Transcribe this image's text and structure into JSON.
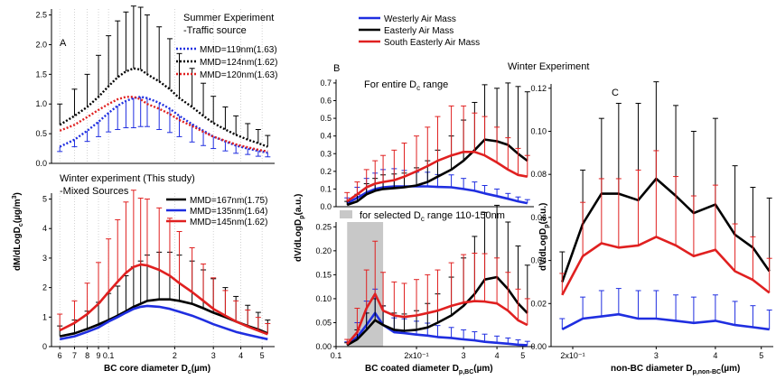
{
  "figure": {
    "panel_a_label": "A",
    "panel_b_label": "B",
    "panel_c_label": "C",
    "summer_title": "Summer Experiment",
    "summer_subtitle": "-Traffic source",
    "winter_title": "Winter experiment (This study)",
    "winter_subtitle": "-Mixed Sources",
    "winter_experiment": "Winter Experiment",
    "entire_range": "For entire D",
    "entire_range_sub": "c",
    "entire_range_tail": " range",
    "selected_range": "for selected D",
    "selected_range_sub": "c",
    "selected_range_tail": " range 110-150nm",
    "a_ylabel_main": "dM/dLogD",
    "a_ylabel_sub": "c",
    "a_ylabel_tail": "(µg/m",
    "a_ylabel_sup": "3",
    "a_ylabel_end": ")",
    "a_xlabel_main": "BC core diameter D",
    "a_xlabel_sub": "c",
    "a_xlabel_tail": "(µm)",
    "b_ylabel_main": "dV/dLogD",
    "b_ylabel_sub": "p",
    "b_ylabel_tail": "(a.u.)",
    "b_xlabel_main": "BC coated diameter D",
    "b_xlabel_sub": "p,BC",
    "b_xlabel_tail": "(µm)",
    "c_ylabel_main": "dV/dLogD",
    "c_ylabel_sub": "p",
    "c_ylabel_tail": "(a.u.)",
    "c_xlabel_main": "non-BC diameter D",
    "c_xlabel_sub": "p,non-BC",
    "c_xlabel_tail": "(µm)"
  },
  "colors": {
    "westerly": "#1f2ee0",
    "easterly": "#000000",
    "southeasterly": "#e02020",
    "shade": "#c8c8c8"
  },
  "chart_data": [
    {
      "panel": "A-top",
      "type": "line",
      "x_scale": "log",
      "xlim": [
        0.055,
        0.57
      ],
      "ylim": [
        0,
        2.6
      ],
      "yticks": [
        0.0,
        0.5,
        1.0,
        1.5,
        2.0,
        2.5
      ],
      "ytick_labels": [
        "0.0",
        "0.5",
        "1.0",
        "1.5",
        "2.0",
        "2.5"
      ],
      "grid": "vertical dotted",
      "legend": "top-right",
      "x": [
        0.06,
        0.07,
        0.08,
        0.09,
        0.1,
        0.11,
        0.12,
        0.13,
        0.14,
        0.15,
        0.17,
        0.19,
        0.21,
        0.24,
        0.27,
        0.3,
        0.34,
        0.38,
        0.43,
        0.48,
        0.53
      ],
      "series": [
        {
          "name": "MMD=119nm(1.63)",
          "color": "#1f2ee0",
          "style": "dotted",
          "values": [
            0.28,
            0.4,
            0.55,
            0.7,
            0.85,
            0.97,
            1.05,
            1.1,
            1.12,
            1.1,
            1.02,
            0.92,
            0.8,
            0.66,
            0.55,
            0.45,
            0.37,
            0.3,
            0.25,
            0.21,
            0.18
          ],
          "errors": [
            0,
            0,
            0,
            0,
            0,
            0,
            0,
            0,
            0,
            0,
            0,
            0,
            0,
            0,
            0,
            0,
            0,
            0,
            0,
            0,
            0
          ],
          "lower_errors": [
            0.08,
            0.12,
            0.18,
            0.25,
            0.32,
            0.4,
            0.45,
            0.5,
            0.5,
            0.48,
            0.45,
            0.4,
            0.35,
            0.3,
            0.25,
            0.2,
            0.16,
            0.13,
            0.1,
            0.09,
            0.07
          ]
        },
        {
          "name": "MMD=124nm(1.62)",
          "color": "#000000",
          "style": "dotted",
          "values": [
            0.65,
            0.8,
            0.95,
            1.12,
            1.3,
            1.45,
            1.55,
            1.6,
            1.58,
            1.5,
            1.38,
            1.25,
            1.1,
            0.95,
            0.8,
            0.68,
            0.57,
            0.48,
            0.4,
            0.34,
            0.28
          ],
          "errors": [
            0.35,
            0.45,
            0.55,
            0.7,
            0.85,
            0.95,
            1.0,
            1.05,
            1.05,
            1.0,
            0.92,
            0.85,
            0.75,
            0.65,
            0.55,
            0.45,
            0.38,
            0.32,
            0.27,
            0.23,
            0.19
          ]
        },
        {
          "name": "MMD=120nm(1.63)",
          "color": "#e02020",
          "style": "dotted",
          "values": [
            0.55,
            0.65,
            0.78,
            0.9,
            1.0,
            1.08,
            1.12,
            1.12,
            1.08,
            1.0,
            0.92,
            0.83,
            0.73,
            0.63,
            0.53,
            0.45,
            0.38,
            0.32,
            0.27,
            0.23,
            0.2
          ],
          "errors": [
            0,
            0,
            0,
            0,
            0,
            0,
            0,
            0,
            0,
            0,
            0,
            0,
            0,
            0,
            0,
            0,
            0,
            0,
            0,
            0,
            0
          ]
        }
      ]
    },
    {
      "panel": "A-bottom",
      "type": "line",
      "x_scale": "log",
      "xlim": [
        0.055,
        0.57
      ],
      "ylim": [
        0,
        5.2
      ],
      "xticks": [
        0.06,
        0.07,
        0.08,
        0.09,
        0.1,
        0.2,
        0.3,
        0.4,
        0.5
      ],
      "xtick_labels": [
        "6",
        "7",
        "8",
        "9",
        "0.1",
        "2",
        "3",
        "4",
        "5"
      ],
      "yticks": [
        0,
        1,
        2,
        3,
        4,
        5
      ],
      "ytick_labels": [
        "0",
        "1",
        "2",
        "3",
        "4",
        "5"
      ],
      "legend": "top-right",
      "x": [
        0.06,
        0.07,
        0.08,
        0.09,
        0.1,
        0.11,
        0.12,
        0.13,
        0.14,
        0.15,
        0.17,
        0.19,
        0.21,
        0.24,
        0.27,
        0.3,
        0.34,
        0.38,
        0.43,
        0.48,
        0.53
      ],
      "series": [
        {
          "name": "MMD=167nm(1.75)",
          "color": "#000000",
          "values": [
            0.35,
            0.45,
            0.6,
            0.75,
            0.9,
            1.05,
            1.2,
            1.35,
            1.45,
            1.55,
            1.6,
            1.6,
            1.55,
            1.45,
            1.3,
            1.15,
            1.0,
            0.85,
            0.7,
            0.58,
            0.45
          ],
          "errors": [
            0.35,
            0.45,
            0.6,
            0.75,
            0.9,
            1.0,
            1.2,
            1.35,
            1.45,
            1.55,
            1.6,
            1.6,
            1.55,
            1.45,
            1.3,
            1.15,
            1.0,
            0.85,
            0.7,
            0.58,
            0.45
          ]
        },
        {
          "name": "MMD=135nm(1.64)",
          "color": "#1f2ee0",
          "values": [
            0.25,
            0.35,
            0.5,
            0.65,
            0.85,
            1.0,
            1.15,
            1.28,
            1.35,
            1.38,
            1.35,
            1.28,
            1.18,
            1.05,
            0.9,
            0.76,
            0.62,
            0.5,
            0.4,
            0.32,
            0.25
          ],
          "errors": [
            0,
            0,
            0,
            0,
            0,
            0,
            0,
            0,
            0,
            0,
            0,
            0,
            0,
            0,
            0,
            0,
            0,
            0,
            0,
            0,
            0
          ]
        },
        {
          "name": "MMD=145nm(1.62)",
          "color": "#e02020",
          "values": [
            0.55,
            0.8,
            1.1,
            1.45,
            1.85,
            2.2,
            2.5,
            2.7,
            2.78,
            2.75,
            2.6,
            2.4,
            2.15,
            1.85,
            1.55,
            1.28,
            1.05,
            0.85,
            0.68,
            0.54,
            0.42
          ],
          "errors": [
            0.55,
            0.75,
            1.05,
            1.4,
            1.8,
            2.1,
            2.4,
            2.6,
            2.25,
            2.25,
            2.1,
            1.95,
            1.75,
            1.5,
            1.25,
            1.05,
            0.85,
            0.7,
            0.56,
            0.45,
            0.36
          ]
        }
      ]
    },
    {
      "panel": "B-top",
      "type": "line",
      "x_scale": "log",
      "xlim": [
        0.1,
        0.55
      ],
      "ylim": [
        0,
        0.72
      ],
      "yticks": [
        0.0,
        0.1,
        0.2,
        0.3,
        0.4,
        0.5,
        0.6,
        0.7
      ],
      "ytick_labels": [
        "0.0",
        "0.1",
        "0.2",
        "0.3",
        "0.4",
        "0.5",
        "0.6",
        "0.7"
      ],
      "legend": "top",
      "x": [
        0.11,
        0.12,
        0.13,
        0.14,
        0.15,
        0.165,
        0.18,
        0.2,
        0.22,
        0.24,
        0.27,
        0.3,
        0.33,
        0.36,
        0.4,
        0.44,
        0.48,
        0.52
      ],
      "series": [
        {
          "name": "Westerly Air Mass",
          "color": "#1f2ee0",
          "values": [
            0.02,
            0.05,
            0.08,
            0.1,
            0.11,
            0.115,
            0.115,
            0.115,
            0.115,
            0.112,
            0.11,
            0.1,
            0.09,
            0.075,
            0.06,
            0.045,
            0.03,
            0.02
          ],
          "errors": [
            0.03,
            0.06,
            0.08,
            0.09,
            0.1,
            0.1,
            0.09,
            0.08,
            0.08,
            0.07,
            0.07,
            0.06,
            0.05,
            0.045,
            0.04,
            0.03,
            0.025,
            0.02
          ]
        },
        {
          "name": "Easterly Air Mass",
          "color": "#000000",
          "values": [
            0.01,
            0.03,
            0.07,
            0.09,
            0.1,
            0.105,
            0.11,
            0.12,
            0.14,
            0.17,
            0.21,
            0.26,
            0.32,
            0.38,
            0.37,
            0.35,
            0.3,
            0.26
          ],
          "errors": [
            0.02,
            0.04,
            0.06,
            0.07,
            0.08,
            0.08,
            0.08,
            0.1,
            0.12,
            0.15,
            0.19,
            0.23,
            0.27,
            0.31,
            0.3,
            0.35,
            0.38,
            0.39
          ]
        },
        {
          "name": "South Easterly Air Mass",
          "color": "#e02020",
          "values": [
            0.03,
            0.07,
            0.11,
            0.13,
            0.14,
            0.15,
            0.17,
            0.2,
            0.23,
            0.26,
            0.29,
            0.31,
            0.31,
            0.29,
            0.25,
            0.21,
            0.18,
            0.17
          ],
          "errors": [
            0.05,
            0.07,
            0.1,
            0.13,
            0.15,
            0.17,
            0.19,
            0.2,
            0.22,
            0.25,
            0.28,
            0.26,
            0.22,
            0.22,
            0.2,
            0.18,
            0.15,
            0.12
          ]
        }
      ]
    },
    {
      "panel": "B-bottom",
      "type": "line",
      "x_scale": "log",
      "xlim": [
        0.1,
        0.55
      ],
      "ylim": [
        0,
        0.26
      ],
      "xticks": [
        0.1,
        0.2,
        0.3,
        0.4,
        0.5
      ],
      "xtick_labels": [
        "0.1",
        "2x10⁻¹",
        "3",
        "4",
        "5"
      ],
      "yticks": [
        0.0,
        0.05,
        0.1,
        0.15,
        0.2,
        0.25
      ],
      "ytick_labels": [
        "0.00",
        "0.05",
        "0.10",
        "0.15",
        "0.20",
        "0.25"
      ],
      "shaded_range": [
        0.11,
        0.15
      ],
      "x": [
        0.11,
        0.12,
        0.13,
        0.14,
        0.15,
        0.165,
        0.18,
        0.2,
        0.22,
        0.24,
        0.27,
        0.3,
        0.33,
        0.36,
        0.4,
        0.44,
        0.48,
        0.52
      ],
      "series": [
        {
          "name": "Westerly Air Mass",
          "color": "#1f2ee0",
          "values": [
            0.004,
            0.02,
            0.045,
            0.07,
            0.045,
            0.03,
            0.028,
            0.025,
            0.023,
            0.02,
            0.018,
            0.015,
            0.013,
            0.01,
            0.008,
            0.006,
            0.004,
            0.003
          ],
          "errors": [
            0.006,
            0.03,
            0.05,
            0.05,
            0.04,
            0.03,
            0.03,
            0.028,
            0.026,
            0.024,
            0.022,
            0.02,
            0.018,
            0.016,
            0.014,
            0.012,
            0.01,
            0.008
          ]
        },
        {
          "name": "Easterly Air Mass",
          "color": "#000000",
          "values": [
            0.003,
            0.015,
            0.035,
            0.055,
            0.045,
            0.035,
            0.033,
            0.035,
            0.04,
            0.05,
            0.065,
            0.085,
            0.11,
            0.14,
            0.145,
            0.12,
            0.09,
            0.07
          ],
          "errors": [
            0.005,
            0.02,
            0.035,
            0.045,
            0.04,
            0.035,
            0.035,
            0.04,
            0.05,
            0.06,
            0.08,
            0.1,
            0.12,
            0.14,
            0.15,
            0.14,
            0.12,
            0.1
          ]
        },
        {
          "name": "South Easterly Air Mass",
          "color": "#e02020",
          "values": [
            0.005,
            0.03,
            0.08,
            0.11,
            0.075,
            0.065,
            0.062,
            0.065,
            0.07,
            0.075,
            0.085,
            0.092,
            0.095,
            0.094,
            0.09,
            0.075,
            0.055,
            0.045
          ],
          "errors": [
            0.01,
            0.05,
            0.08,
            0.11,
            0.08,
            0.07,
            0.07,
            0.075,
            0.08,
            0.085,
            0.09,
            0.1,
            0.1,
            0.1,
            0.095,
            0.08,
            0.065,
            0.055
          ]
        }
      ]
    },
    {
      "panel": "C",
      "type": "line",
      "x_scale": "log",
      "xlim": [
        0.18,
        0.53
      ],
      "ylim": [
        0,
        0.122
      ],
      "xticks": [
        0.2,
        0.3,
        0.4,
        0.5
      ],
      "xtick_labels": [
        "2x10⁻¹",
        "3",
        "4",
        "5"
      ],
      "yticks": [
        0.0,
        0.02,
        0.04,
        0.06,
        0.08,
        0.1,
        0.12
      ],
      "ytick_labels": [
        "0.00",
        "0.02",
        "0.04",
        "0.06",
        "0.08",
        "0.10",
        "0.12"
      ],
      "x": [
        0.19,
        0.21,
        0.23,
        0.25,
        0.275,
        0.3,
        0.33,
        0.36,
        0.4,
        0.44,
        0.48,
        0.52
      ],
      "series": [
        {
          "name": "Westerly Air Mass",
          "color": "#1f2ee0",
          "values": [
            0.008,
            0.013,
            0.014,
            0.015,
            0.013,
            0.013,
            0.012,
            0.011,
            0.012,
            0.01,
            0.009,
            0.008
          ],
          "errors": [
            0.005,
            0.01,
            0.012,
            0.012,
            0.013,
            0.013,
            0.012,
            0.012,
            0.012,
            0.011,
            0.01,
            0.009
          ]
        },
        {
          "name": "Easterly Air Mass",
          "color": "#000000",
          "values": [
            0.03,
            0.057,
            0.071,
            0.071,
            0.068,
            0.078,
            0.07,
            0.062,
            0.066,
            0.052,
            0.046,
            0.035
          ],
          "errors": [
            0.014,
            0.025,
            0.035,
            0.042,
            0.045,
            0.045,
            0.042,
            0.038,
            0.04,
            0.032,
            0.028,
            0.034
          ]
        },
        {
          "name": "South Easterly Air Mass",
          "color": "#e02020",
          "values": [
            0.024,
            0.042,
            0.048,
            0.046,
            0.047,
            0.051,
            0.047,
            0.042,
            0.045,
            0.035,
            0.031,
            0.025
          ],
          "errors": [
            0.01,
            0.025,
            0.03,
            0.032,
            0.035,
            0.04,
            0.032,
            0.028,
            0.03,
            0.022,
            0.02,
            0.016
          ]
        }
      ]
    }
  ]
}
